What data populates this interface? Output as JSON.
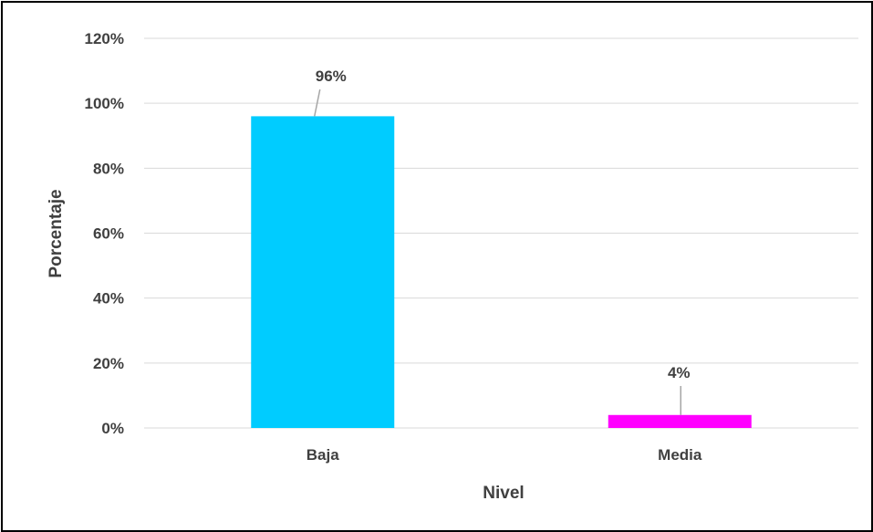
{
  "chart_data": {
    "type": "bar",
    "categories": [
      "Baja",
      "Media"
    ],
    "values": [
      96,
      4
    ],
    "data_labels": [
      "96%",
      "4%"
    ],
    "bar_colors": [
      "#00CCFF",
      "#FF00FF"
    ],
    "xlabel": "Nivel",
    "ylabel": "Porcentaje",
    "ylim": [
      0,
      120
    ],
    "yticks": [
      0,
      20,
      40,
      60,
      80,
      100,
      120
    ],
    "ytick_labels": [
      "0%",
      "20%",
      "40%",
      "60%",
      "80%",
      "100%",
      "120%"
    ],
    "grid": true,
    "legend": "none"
  }
}
